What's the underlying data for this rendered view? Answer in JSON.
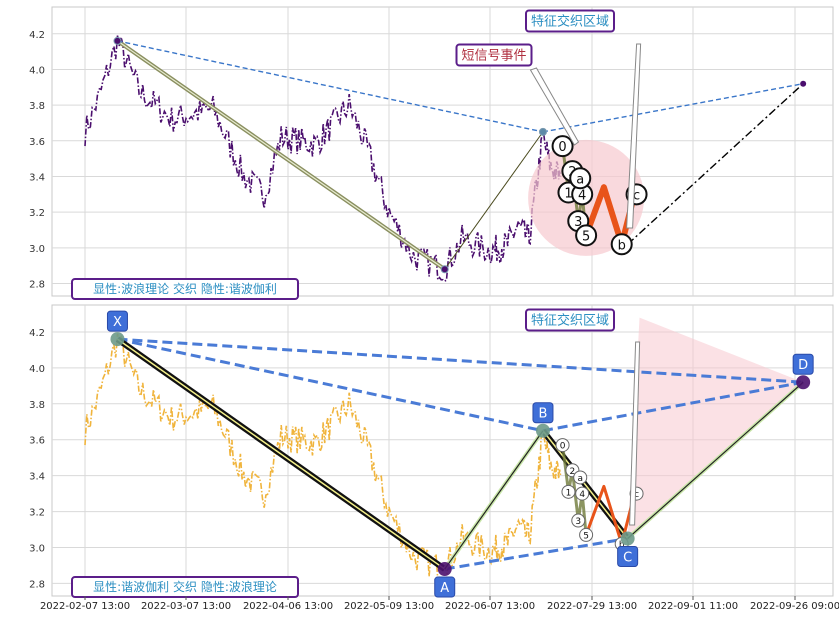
{
  "chart_data": [
    {
      "type": "line",
      "panel": "top",
      "title": "",
      "xlabel": "",
      "ylabel": "",
      "ylim": [
        2.73,
        4.35
      ],
      "yticks": [
        "2.8",
        "3.0",
        "3.2",
        "3.4",
        "3.6",
        "3.8",
        "4.0",
        "4.2"
      ],
      "grid": true,
      "price_series": {
        "style": "dash-dot",
        "color": "#4b0f6e",
        "anchors": [
          {
            "x": "2022-02-07",
            "y": 3.65
          },
          {
            "x": "2022-02-11",
            "y": 3.85
          },
          {
            "x": "2022-02-16",
            "y": 4.16
          },
          {
            "x": "2022-02-22",
            "y": 3.88
          },
          {
            "x": "2022-03-03",
            "y": 3.72
          },
          {
            "x": "2022-03-15",
            "y": 3.78
          },
          {
            "x": "2022-03-24",
            "y": 3.4
          },
          {
            "x": "2022-03-30",
            "y": 3.3
          },
          {
            "x": "2022-04-04",
            "y": 3.62
          },
          {
            "x": "2022-04-15",
            "y": 3.58
          },
          {
            "x": "2022-04-26",
            "y": 3.8
          },
          {
            "x": "2022-05-02",
            "y": 3.55
          },
          {
            "x": "2022-05-09",
            "y": 3.2
          },
          {
            "x": "2022-05-16",
            "y": 2.95
          },
          {
            "x": "2022-05-25",
            "y": 2.88
          },
          {
            "x": "2022-05-30",
            "y": 3.05
          },
          {
            "x": "2022-06-07",
            "y": 2.98
          },
          {
            "x": "2022-06-16",
            "y": 3.02
          },
          {
            "x": "2022-06-21",
            "y": 3.12
          },
          {
            "x": "2022-06-27",
            "y": 3.05
          },
          {
            "x": "2022-07-04",
            "y": 3.62
          },
          {
            "x": "2022-07-08",
            "y": 3.45
          },
          {
            "x": "2022-07-13",
            "y": 3.4
          }
        ]
      },
      "wave_zigzag": [
        {
          "x": "2022-02-16",
          "y": 4.16
        },
        {
          "x": "2022-05-25",
          "y": 2.88
        },
        {
          "x": "2022-07-04",
          "y": 3.65
        }
      ],
      "trend_lines": [
        {
          "from": {
            "x": "2022-02-16",
            "y": 4.16
          },
          "to": {
            "x": "2022-07-04",
            "y": 3.65
          },
          "style": "dashed",
          "color": "#3a76c9"
        },
        {
          "from": {
            "x": "2022-07-04",
            "y": 3.65
          },
          "to": {
            "x": "2022-09-28",
            "y": 3.92
          },
          "style": "dashed",
          "color": "#3a76c9"
        },
        {
          "from": {
            "x": "2022-08-10",
            "y": 3.02
          },
          "to": {
            "x": "2022-09-28",
            "y": 3.92
          },
          "style": "dash-dot",
          "color": "#000000"
        }
      ],
      "sub_waves": [
        {
          "label": "0",
          "x": "2022-07-14",
          "y": 3.57
        },
        {
          "label": "1",
          "x": "2022-07-17",
          "y": 3.31
        },
        {
          "label": "2",
          "x": "2022-07-19",
          "y": 3.43
        },
        {
          "label": "3",
          "x": "2022-07-22",
          "y": 3.15
        },
        {
          "label": "4",
          "x": "2022-07-24",
          "y": 3.3
        },
        {
          "label": "5",
          "x": "2022-07-26",
          "y": 3.07
        },
        {
          "label": "a",
          "x": "2022-07-23",
          "y": 3.39
        },
        {
          "label": "b",
          "x": "2022-08-08",
          "y": 3.02
        },
        {
          "label": "c",
          "x": "2022-08-13",
          "y": 3.3
        }
      ],
      "annotations": {
        "zone_label": "特征交织区域",
        "short_signal_label": "短信号事件",
        "bottom_label": "显性:波浪理论 交织 隐性:谐波伽利"
      }
    },
    {
      "type": "line",
      "panel": "bottom",
      "title": "",
      "xlabel": "",
      "ylabel": "",
      "ylim": [
        2.73,
        4.35
      ],
      "yticks": [
        "2.8",
        "3.0",
        "3.2",
        "3.4",
        "3.6",
        "3.8",
        "4.0",
        "4.2"
      ],
      "grid": true,
      "price_series": {
        "style": "dash-dot",
        "color": "#f0b43c",
        "anchors": [
          {
            "x": "2022-02-07",
            "y": 3.65
          },
          {
            "x": "2022-02-11",
            "y": 3.85
          },
          {
            "x": "2022-02-16",
            "y": 4.16
          },
          {
            "x": "2022-02-22",
            "y": 3.88
          },
          {
            "x": "2022-03-03",
            "y": 3.72
          },
          {
            "x": "2022-03-15",
            "y": 3.78
          },
          {
            "x": "2022-03-24",
            "y": 3.4
          },
          {
            "x": "2022-03-30",
            "y": 3.3
          },
          {
            "x": "2022-04-04",
            "y": 3.62
          },
          {
            "x": "2022-04-15",
            "y": 3.58
          },
          {
            "x": "2022-04-26",
            "y": 3.8
          },
          {
            "x": "2022-05-02",
            "y": 3.55
          },
          {
            "x": "2022-05-09",
            "y": 3.2
          },
          {
            "x": "2022-05-16",
            "y": 2.95
          },
          {
            "x": "2022-05-25",
            "y": 2.88
          },
          {
            "x": "2022-05-30",
            "y": 3.05
          },
          {
            "x": "2022-06-07",
            "y": 2.98
          },
          {
            "x": "2022-06-16",
            "y": 3.02
          },
          {
            "x": "2022-06-21",
            "y": 3.12
          },
          {
            "x": "2022-06-27",
            "y": 3.05
          },
          {
            "x": "2022-07-04",
            "y": 3.62
          },
          {
            "x": "2022-07-08",
            "y": 3.45
          },
          {
            "x": "2022-07-13",
            "y": 3.4
          }
        ]
      },
      "harmonic_points": [
        {
          "label": "X",
          "x": "2022-02-16",
          "y": 4.16
        },
        {
          "label": "A",
          "x": "2022-05-25",
          "y": 2.88
        },
        {
          "label": "B",
          "x": "2022-07-04",
          "y": 3.65
        },
        {
          "label": "C",
          "x": "2022-08-10",
          "y": 3.05
        },
        {
          "label": "D",
          "x": "2022-09-28",
          "y": 3.92
        }
      ],
      "sub_waves": [
        {
          "label": "0",
          "x": "2022-07-14",
          "y": 3.57
        },
        {
          "label": "1",
          "x": "2022-07-17",
          "y": 3.31
        },
        {
          "label": "2",
          "x": "2022-07-19",
          "y": 3.43
        },
        {
          "label": "3",
          "x": "2022-07-22",
          "y": 3.15
        },
        {
          "label": "4",
          "x": "2022-07-24",
          "y": 3.3
        },
        {
          "label": "5",
          "x": "2022-07-26",
          "y": 3.07
        },
        {
          "label": "a",
          "x": "2022-07-23",
          "y": 3.39
        },
        {
          "label": "b",
          "x": "2022-08-08",
          "y": 3.02
        },
        {
          "label": "c",
          "x": "2022-08-13",
          "y": 3.3
        }
      ],
      "annotations": {
        "zone_label": "特征交织区域",
        "bottom_label": "显性:谐波伽利 交织 隐性:波浪理论"
      }
    }
  ],
  "x_axis": {
    "tick_labels": [
      "2022-02-07 13:00",
      "2022-03-07 13:00",
      "2022-04-06 13:00",
      "2022-05-09 13:00",
      "2022-06-07 13:00",
      "2022-07-29 13:00",
      "2022-09-01 11:00",
      "2022-09-26 09:00"
    ]
  },
  "colors": {
    "grid": "#d9d9d9",
    "label_border": "#5b1e8a",
    "label_text": "#2c8fc2",
    "signal_text": "#b03040",
    "point_box": "#3f6fd8",
    "wave_zigzag": "#6b6b3a",
    "harmonic_fill": "#f7c8cf",
    "zone_fill": "#f6c9cf",
    "sub_wave_orange": "#e8541a"
  }
}
